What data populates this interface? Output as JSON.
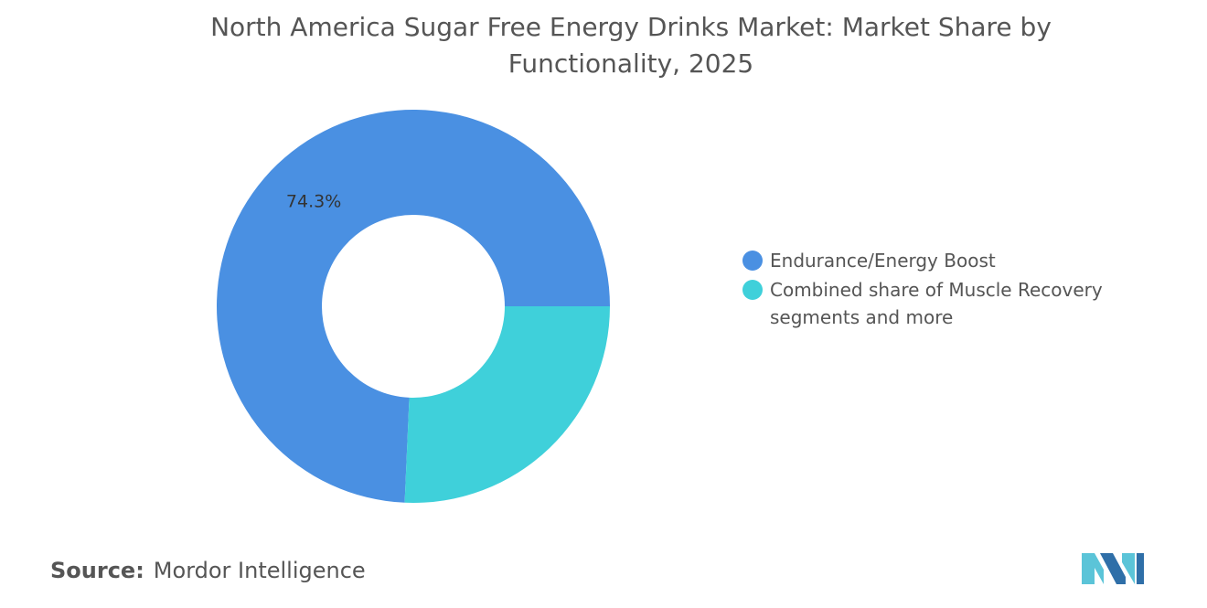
{
  "chart_data": {
    "type": "donut",
    "title": "North America Sugar Free Energy Drinks Market: Market Share by Functionality, 2025",
    "categories": [
      "Endurance/Energy Boost",
      "Combined share of Muscle Recovery segments and more"
    ],
    "values": [
      74.3,
      25.7
    ],
    "value_labels": [
      "74.3%",
      null
    ],
    "colors": [
      "#4a90e2",
      "#3fd0da"
    ],
    "source_label": "Source:",
    "source": "Mordor Intelligence"
  }
}
